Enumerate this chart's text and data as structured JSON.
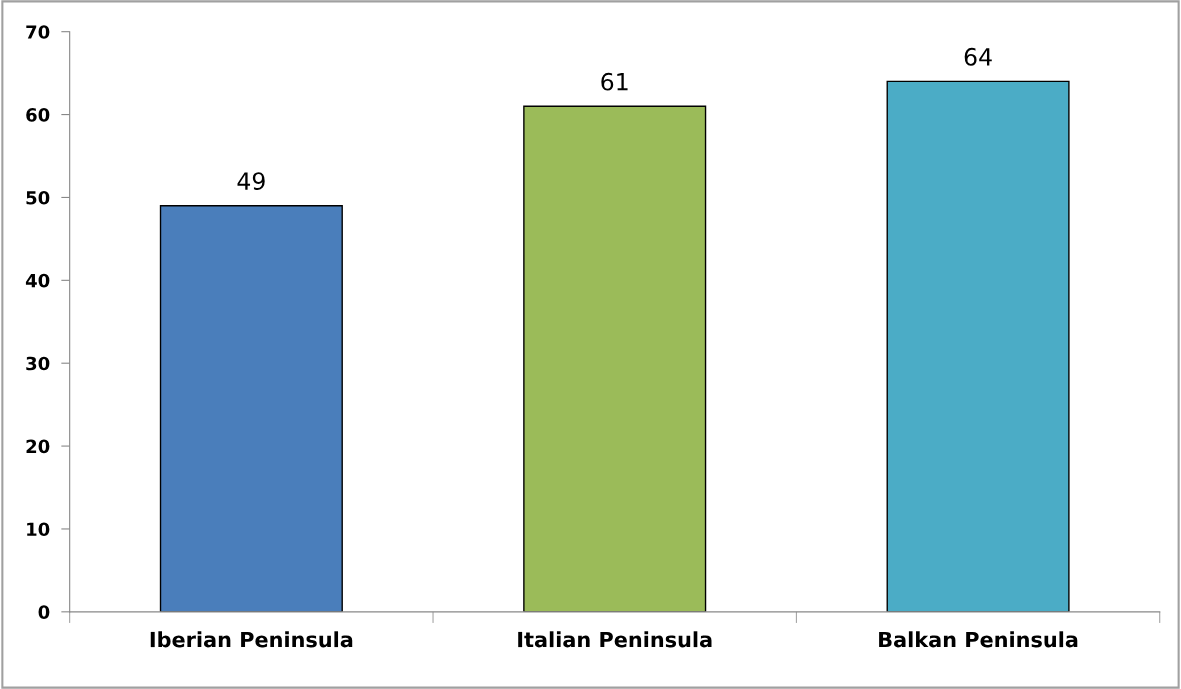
{
  "chart_data": {
    "type": "bar",
    "categories": [
      "Iberian Peninsula",
      "Italian Peninsula",
      "Balkan Peninsula"
    ],
    "values": [
      49,
      61,
      64
    ],
    "colors": [
      "#4a7ebb",
      "#9bbb59",
      "#4bacc6"
    ],
    "ylim": [
      0,
      70
    ],
    "yticks": [
      0,
      10,
      20,
      30,
      40,
      50,
      60,
      70
    ],
    "data_labels": true,
    "grid": false,
    "legend": false
  }
}
